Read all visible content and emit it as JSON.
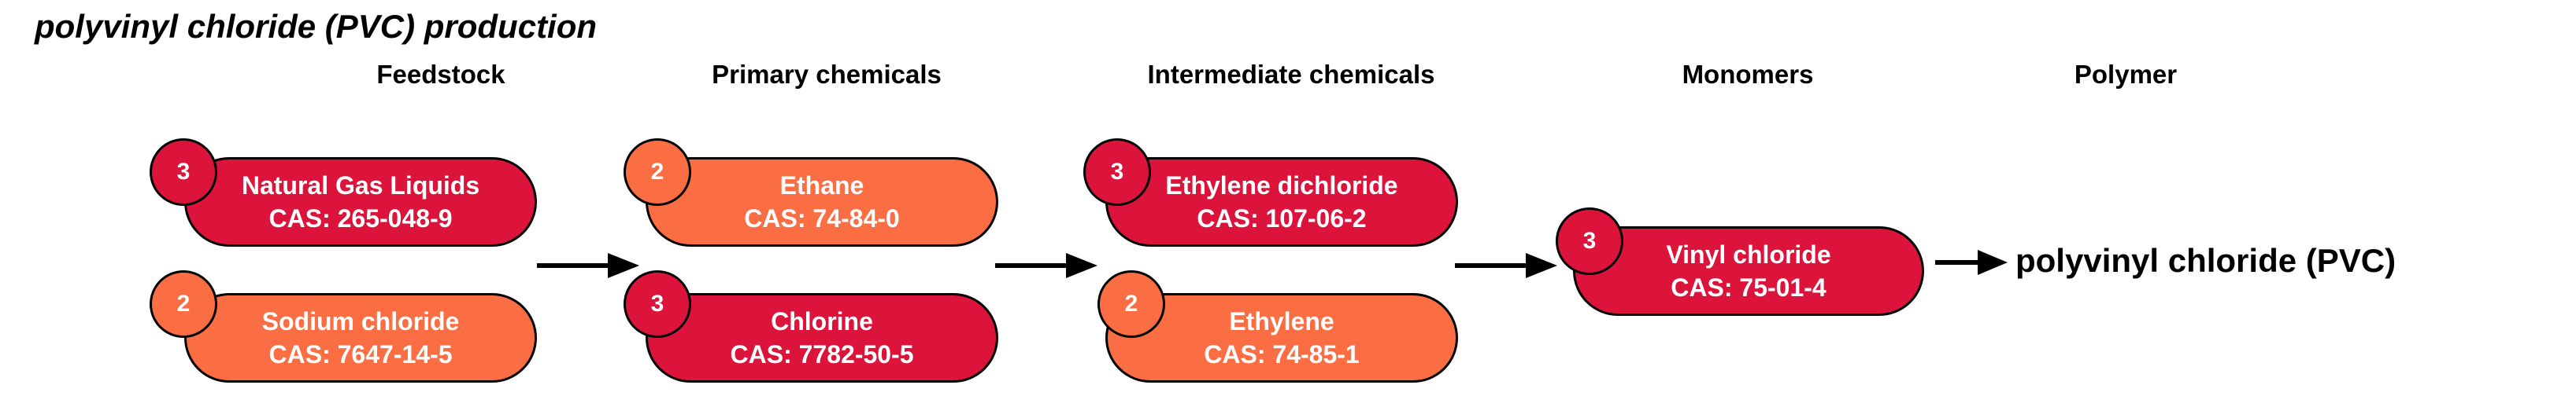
{
  "title": "polyvinyl chloride (PVC) production",
  "colors": {
    "level_3": "#dc143c",
    "level_2": "#fb6e44",
    "outline": "#000000",
    "arrow": "#000000"
  },
  "columns": [
    {
      "header": "Feedstock"
    },
    {
      "header": "Primary chemicals"
    },
    {
      "header": "Intermediate chemicals"
    },
    {
      "header": "Monomers"
    },
    {
      "header": "Polymer"
    }
  ],
  "nodes": [
    {
      "id": "natural-gas-liquids",
      "name": "Natural Gas Liquids",
      "cas": "CAS: 265-048-9",
      "rating": "3",
      "level_color": "level_3"
    },
    {
      "id": "sodium-chloride",
      "name": "Sodium chloride",
      "cas": "CAS: 7647-14-5",
      "rating": "2",
      "level_color": "level_2"
    },
    {
      "id": "ethane",
      "name": "Ethane",
      "cas": "CAS: 74-84-0",
      "rating": "2",
      "level_color": "level_2"
    },
    {
      "id": "chlorine",
      "name": "Chlorine",
      "cas": "CAS: 7782-50-5",
      "rating": "3",
      "level_color": "level_3"
    },
    {
      "id": "ethylene-dichloride",
      "name": "Ethylene dichloride",
      "cas": "CAS: 107-06-2",
      "rating": "3",
      "level_color": "level_3"
    },
    {
      "id": "ethylene",
      "name": "Ethylene",
      "cas": "CAS: 74-85-1",
      "rating": "2",
      "level_color": "level_2"
    },
    {
      "id": "vinyl-chloride",
      "name": "Vinyl chloride",
      "cas": "CAS: 75-01-4",
      "rating": "3",
      "level_color": "level_3"
    }
  ],
  "polymer": {
    "name": "polyvinyl chloride (PVC)"
  }
}
